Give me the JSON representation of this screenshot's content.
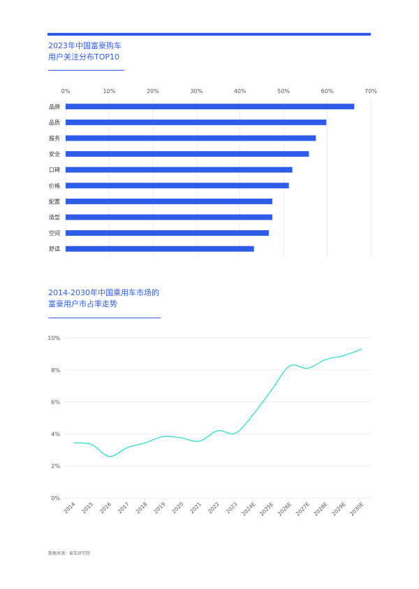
{
  "colors": {
    "accent": "#2f5be9",
    "line": "#2fe0c9",
    "grid": "#e6e6e6",
    "axis_text": "#555555"
  },
  "chart_data": [
    {
      "type": "bar",
      "orientation": "horizontal",
      "title_lines": [
        "2023年中国富豪购车",
        "用户关注分布TOP10"
      ],
      "categories": [
        "品牌",
        "品质",
        "服务",
        "安全",
        "口碑",
        "价格",
        "配置",
        "造型",
        "空间",
        "舒适"
      ],
      "values": [
        66.2,
        59.8,
        57.4,
        55.8,
        52.0,
        51.2,
        47.4,
        47.4,
        46.6,
        43.2
      ],
      "xlim": [
        0,
        70
      ],
      "x_ticks": [
        0,
        10,
        20,
        30,
        40,
        50,
        60,
        70
      ],
      "tick_format": "percent",
      "xaxis_position": "top",
      "grid": true,
      "color": "#2f5be9"
    },
    {
      "type": "line",
      "title_lines": [
        "2014-2030年中国乘用车市场的",
        "富豪用户市占率走势"
      ],
      "categories": [
        "2014",
        "2015",
        "2016",
        "2017",
        "2018",
        "2019",
        "2020",
        "2021",
        "2022",
        "2023",
        "2024E",
        "2025E",
        "2026E",
        "2027E",
        "2028E",
        "2029E",
        "2030E"
      ],
      "values": [
        3.45,
        3.35,
        2.6,
        3.15,
        3.45,
        3.85,
        3.75,
        3.55,
        4.2,
        4.05,
        5.25,
        6.75,
        8.25,
        8.1,
        8.65,
        8.9,
        9.3
      ],
      "ylim": [
        0,
        10
      ],
      "y_ticks": [
        0,
        2,
        4,
        6,
        8,
        10
      ],
      "tick_format": "percent",
      "grid": true,
      "color": "#2fe0c9"
    }
  ],
  "source": "数据来源：易车研究院"
}
